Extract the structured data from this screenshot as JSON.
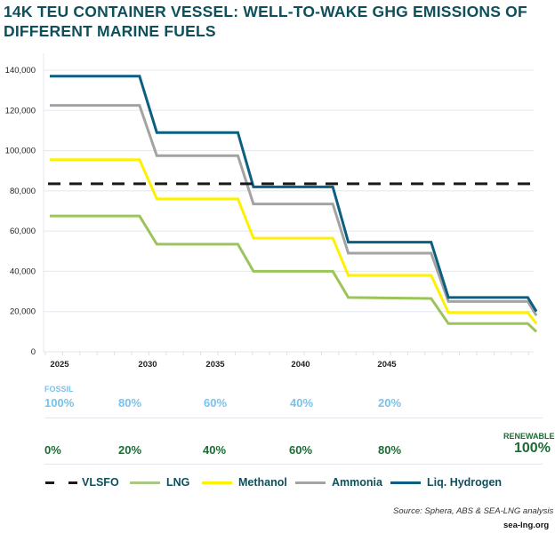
{
  "chart_data": {
    "type": "line",
    "title": "14K TEU CONTAINER VESSEL: WELL-TO-WAKE GHG EMISSIONS OF DIFFERENT MARINE FUELS",
    "xlabel": "",
    "ylabel": "",
    "ylim": [
      0,
      140000
    ],
    "yticks": [
      "0",
      "20,000",
      "40,000",
      "60,000",
      "80,000",
      "100,000",
      "120,000",
      "140,000"
    ],
    "ytick_values": [
      0,
      20000,
      40000,
      60000,
      80000,
      100000,
      120000,
      140000
    ],
    "xticks": [
      "2025",
      "2030",
      "2035",
      "2040",
      "2045"
    ],
    "xtick_values": [
      2025,
      2030,
      2035,
      2040,
      2045
    ],
    "grid": true,
    "series": [
      {
        "name": "VLSFO",
        "color": "#1a1a1a",
        "dashed": true,
        "x": [
          2025,
          2053
        ],
        "y": [
          83500,
          83500
        ]
      },
      {
        "name": "LNG",
        "color": "#9bc55a",
        "x": [
          2025,
          2030.2,
          2031.2,
          2035.9,
          2036.8,
          2041.4,
          2042.3,
          2047.1,
          2048.1,
          2052.7,
          2053.2
        ],
        "y": [
          67500,
          67500,
          53500,
          53500,
          40000,
          40000,
          27000,
          26500,
          14000,
          14000,
          10000
        ]
      },
      {
        "name": "Methanol",
        "color": "#fff000",
        "x": [
          2025,
          2030.2,
          2031.2,
          2035.9,
          2036.8,
          2041.4,
          2042.3,
          2047.1,
          2048.1,
          2052.7,
          2053.2
        ],
        "y": [
          95500,
          95500,
          76000,
          76000,
          56500,
          56500,
          38000,
          38000,
          19500,
          19500,
          14000
        ]
      },
      {
        "name": "Ammonia",
        "color": "#a3a3a3",
        "x": [
          2025,
          2030.2,
          2031.2,
          2035.9,
          2036.8,
          2041.4,
          2042.3,
          2047.1,
          2048.1,
          2052.7,
          2053.2
        ],
        "y": [
          122500,
          122500,
          97500,
          97500,
          73500,
          73500,
          49000,
          49000,
          25000,
          25000,
          18000
        ]
      },
      {
        "name": "Liq. Hydrogen",
        "color": "#0d5f82",
        "x": [
          2025,
          2030.2,
          2031.2,
          2035.9,
          2036.8,
          2041.4,
          2042.3,
          2047.1,
          2048.1,
          2052.7,
          2053.2
        ],
        "y": [
          137000,
          137000,
          109000,
          109000,
          82000,
          82000,
          54500,
          54500,
          27000,
          27000,
          20000
        ]
      }
    ]
  },
  "fossil": {
    "label": "FOSSIL",
    "values": [
      "100%",
      "80%",
      "60%",
      "40%",
      "20%"
    ]
  },
  "renewable": {
    "label": "RENEWABLE",
    "values": [
      "0%",
      "20%",
      "40%",
      "60%",
      "80%",
      "100%"
    ]
  },
  "legend": [
    "VLSFO",
    "LNG",
    "Methanol",
    "Ammonia",
    "Liq. Hydrogen"
  ],
  "source": "Source: Sphera, ABS & SEA-LNG analysis",
  "site": "sea-lng.org"
}
